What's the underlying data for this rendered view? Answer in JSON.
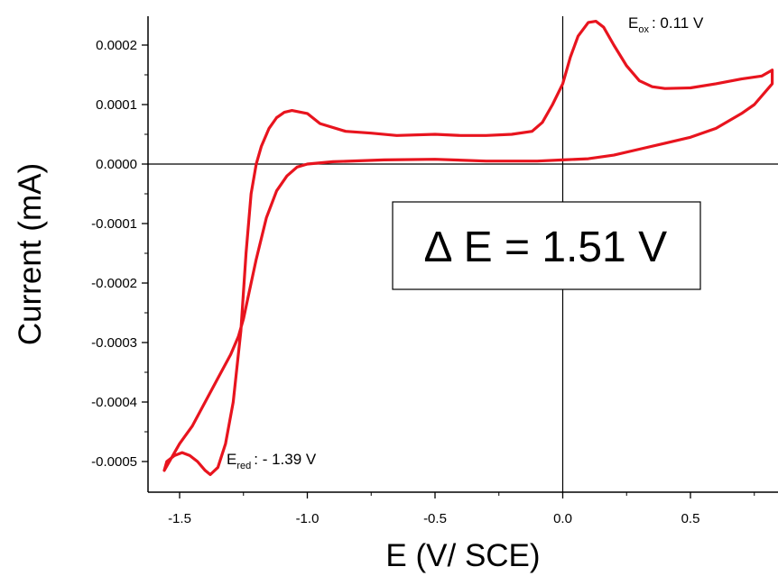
{
  "chart_data": {
    "type": "line",
    "xlabel": "E (V/ SCE)",
    "ylabel": "Current (mA)",
    "xlim": [
      -1.6,
      0.82
    ],
    "ylim": [
      -0.00055,
      0.00025
    ],
    "x_ticks": [
      -1.5,
      -1.0,
      -0.5,
      0.0,
      0.5
    ],
    "x_tick_labels": [
      "-1.5",
      "-1.0",
      "-0.5",
      "0.0",
      "0.5"
    ],
    "y_ticks": [
      0.0002,
      0.0001,
      0.0,
      -0.0001,
      -0.0002,
      -0.0003,
      -0.0004,
      -0.0005
    ],
    "y_tick_labels": [
      "0.0002",
      "0.0001",
      "0.0000",
      "-0.0001",
      "-0.0002",
      "-0.0003",
      "-0.0004",
      "-0.0005"
    ],
    "zero_lines": {
      "x": 0.0,
      "y": 0.0
    },
    "grid": false,
    "legend": "none",
    "series_color": "#e8141e",
    "series": [
      {
        "points": [
          [
            0.0,
            0.000135
          ],
          [
            0.03,
            0.00018
          ],
          [
            0.06,
            0.000215
          ],
          [
            0.1,
            0.000238
          ],
          [
            0.13,
            0.00024
          ],
          [
            0.16,
            0.00023
          ],
          [
            0.2,
            0.0002
          ],
          [
            0.25,
            0.000165
          ],
          [
            0.3,
            0.00014
          ],
          [
            0.35,
            0.00013
          ],
          [
            0.4,
            0.000127
          ],
          [
            0.5,
            0.000128
          ],
          [
            0.6,
            0.000135
          ],
          [
            0.7,
            0.000143
          ],
          [
            0.78,
            0.000148
          ],
          [
            0.82,
            0.000158
          ],
          [
            0.82,
            0.000135
          ],
          [
            0.75,
            0.0001
          ],
          [
            0.7,
            8.5e-05
          ],
          [
            0.6,
            6e-05
          ],
          [
            0.5,
            4.5e-05
          ],
          [
            0.4,
            3.5e-05
          ],
          [
            0.3,
            2.5e-05
          ],
          [
            0.2,
            1.5e-05
          ],
          [
            0.1,
            9e-06
          ],
          [
            0.0,
            7e-06
          ],
          [
            -0.1,
            5e-06
          ],
          [
            -0.3,
            5e-06
          ],
          [
            -0.5,
            8e-06
          ],
          [
            -0.7,
            7e-06
          ],
          [
            -0.9,
            4e-06
          ],
          [
            -1.0,
            0.0
          ],
          [
            -1.04,
            -5e-06
          ],
          [
            -1.08,
            -2e-05
          ],
          [
            -1.12,
            -4.5e-05
          ],
          [
            -1.16,
            -9e-05
          ],
          [
            -1.2,
            -0.00016
          ],
          [
            -1.23,
            -0.00022
          ],
          [
            -1.25,
            -0.00026
          ],
          [
            -1.27,
            -0.00029
          ],
          [
            -1.3,
            -0.00032
          ],
          [
            -1.35,
            -0.00036
          ],
          [
            -1.4,
            -0.0004
          ],
          [
            -1.45,
            -0.00044
          ],
          [
            -1.5,
            -0.00047
          ],
          [
            -1.54,
            -0.0005
          ],
          [
            -1.56,
            -0.000515
          ],
          [
            -1.55,
            -0.0005
          ],
          [
            -1.52,
            -0.00049
          ],
          [
            -1.49,
            -0.000485
          ],
          [
            -1.46,
            -0.00049
          ],
          [
            -1.43,
            -0.0005
          ],
          [
            -1.4,
            -0.000515
          ],
          [
            -1.38,
            -0.000522
          ],
          [
            -1.35,
            -0.00051
          ],
          [
            -1.32,
            -0.00047
          ],
          [
            -1.29,
            -0.0004
          ],
          [
            -1.26,
            -0.00028
          ],
          [
            -1.24,
            -0.00015
          ],
          [
            -1.22,
            -5e-05
          ],
          [
            -1.2,
            0.0
          ],
          [
            -1.18,
            3e-05
          ],
          [
            -1.15,
            6e-05
          ],
          [
            -1.12,
            7.8e-05
          ],
          [
            -1.09,
            8.7e-05
          ],
          [
            -1.06,
            9e-05
          ],
          [
            -1.0,
            8.5e-05
          ],
          [
            -0.95,
            6.8e-05
          ],
          [
            -0.85,
            5.5e-05
          ],
          [
            -0.75,
            5.2e-05
          ],
          [
            -0.65,
            4.8e-05
          ],
          [
            -0.5,
            5e-05
          ],
          [
            -0.4,
            4.8e-05
          ],
          [
            -0.3,
            4.8e-05
          ],
          [
            -0.2,
            5e-05
          ],
          [
            -0.12,
            5.5e-05
          ],
          [
            -0.08,
            7e-05
          ],
          [
            -0.04,
            0.0001
          ],
          [
            0.0,
            0.000135
          ]
        ]
      }
    ],
    "annotations": {
      "eox_main": "E",
      "eox_sub": "ox",
      "eox_value": ": 0.11 V",
      "ered_main": "E",
      "ered_sub": "red",
      "ered_value": ": - 1.39 V",
      "delta_e": "∆ E = 1.51 V"
    }
  }
}
